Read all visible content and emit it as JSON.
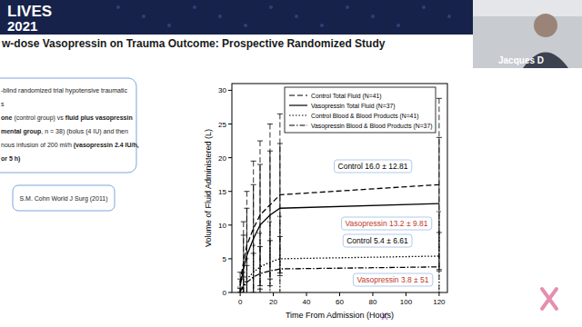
{
  "chart_data": {
    "type": "line",
    "x_label": "Time From Admission (Hours)",
    "y_label": "Volume of Fluid Administered (L)",
    "x": [
      0,
      2,
      4,
      8,
      12,
      18,
      24,
      120
    ],
    "xlim": [
      -5,
      125
    ],
    "xticks": [
      0,
      20,
      40,
      60,
      80,
      100,
      120
    ],
    "ylim": [
      0,
      31
    ],
    "yticks": [
      0,
      5,
      10,
      15,
      20,
      25,
      30
    ],
    "grid": false,
    "legend": "top",
    "series": [
      {
        "name": "Control Total Fluid (N=41)",
        "color": "#000000",
        "line_style": "dashed",
        "values": [
          1.5,
          4.5,
          7.0,
          9.5,
          11.5,
          13.0,
          14.5,
          16.0
        ],
        "error": [
          1.5,
          6.0,
          8.0,
          10.0,
          11.0,
          12.0,
          12.0,
          12.8
        ]
      },
      {
        "name": "Vasopressin Total Fluid (N=37)",
        "color": "#000000",
        "line_style": "solid",
        "values": [
          1.0,
          3.5,
          5.5,
          8.0,
          10.0,
          11.5,
          12.5,
          13.2
        ],
        "error": [
          1.0,
          5.0,
          7.0,
          8.0,
          9.0,
          9.5,
          9.6,
          9.8
        ]
      },
      {
        "name": "Control Blood & Blood Products (N=41)",
        "color": "#000000",
        "line_style": "dotted",
        "values": [
          0.3,
          1.0,
          2.0,
          3.0,
          3.8,
          4.5,
          5.0,
          5.4
        ],
        "error": [
          0.5,
          2.0,
          3.0,
          4.0,
          5.0,
          6.0,
          6.3,
          6.6
        ]
      },
      {
        "name": "Vasopressin Blood & Blood Products (N=37)",
        "color": "#000000",
        "line_style": "dashdot",
        "values": [
          0.2,
          0.8,
          1.5,
          2.3,
          2.8,
          3.2,
          3.5,
          3.8
        ],
        "error": [
          0.4,
          1.5,
          2.5,
          3.5,
          4.0,
          4.5,
          4.8,
          5.1
        ]
      }
    ],
    "annotations": [
      {
        "text": "Control 16.0 ± 12.81",
        "color": "#000000"
      },
      {
        "text": "Vasopressin 13.2 ± 9.81",
        "color": "#c0392b"
      },
      {
        "text": "Control 5.4 ± 6.61",
        "color": "#000000"
      },
      {
        "text": "Vasopressin 3.8 ± 51",
        "color": "#c0392b"
      }
    ]
  },
  "slide": {
    "logo": [
      "LIVES",
      "2021"
    ],
    "title": "w-dose Vasopressin on Trauma Outcome: Prospective Randomized Study",
    "box_lines": [
      [
        {
          "text": "-blind randomized trial hypotensive traumatic",
          "bold": false
        }
      ],
      [
        {
          "text": "s",
          "bold": false
        }
      ],
      [
        {
          "text": "one",
          "bold": true
        },
        {
          "text": " (control group) vs ",
          "bold": false
        },
        {
          "text": "fluid plus vasopressin",
          "bold": true
        }
      ],
      [
        {
          "text": "mental group",
          "bold": true
        },
        {
          "text": ", n = 38) (bolus (4 IU) and then",
          "bold": false
        }
      ],
      [
        {
          "text": "nous infusion of 200 ml/h ",
          "bold": false
        },
        {
          "text": "(vasopressin 2.4 IU/h,",
          "bold": true
        }
      ],
      [
        {
          "text": "or 5 h)",
          "bold": true
        }
      ]
    ],
    "citation": "S.M. Cohn World J Surg (2011)",
    "speaker": "Jacques D"
  }
}
